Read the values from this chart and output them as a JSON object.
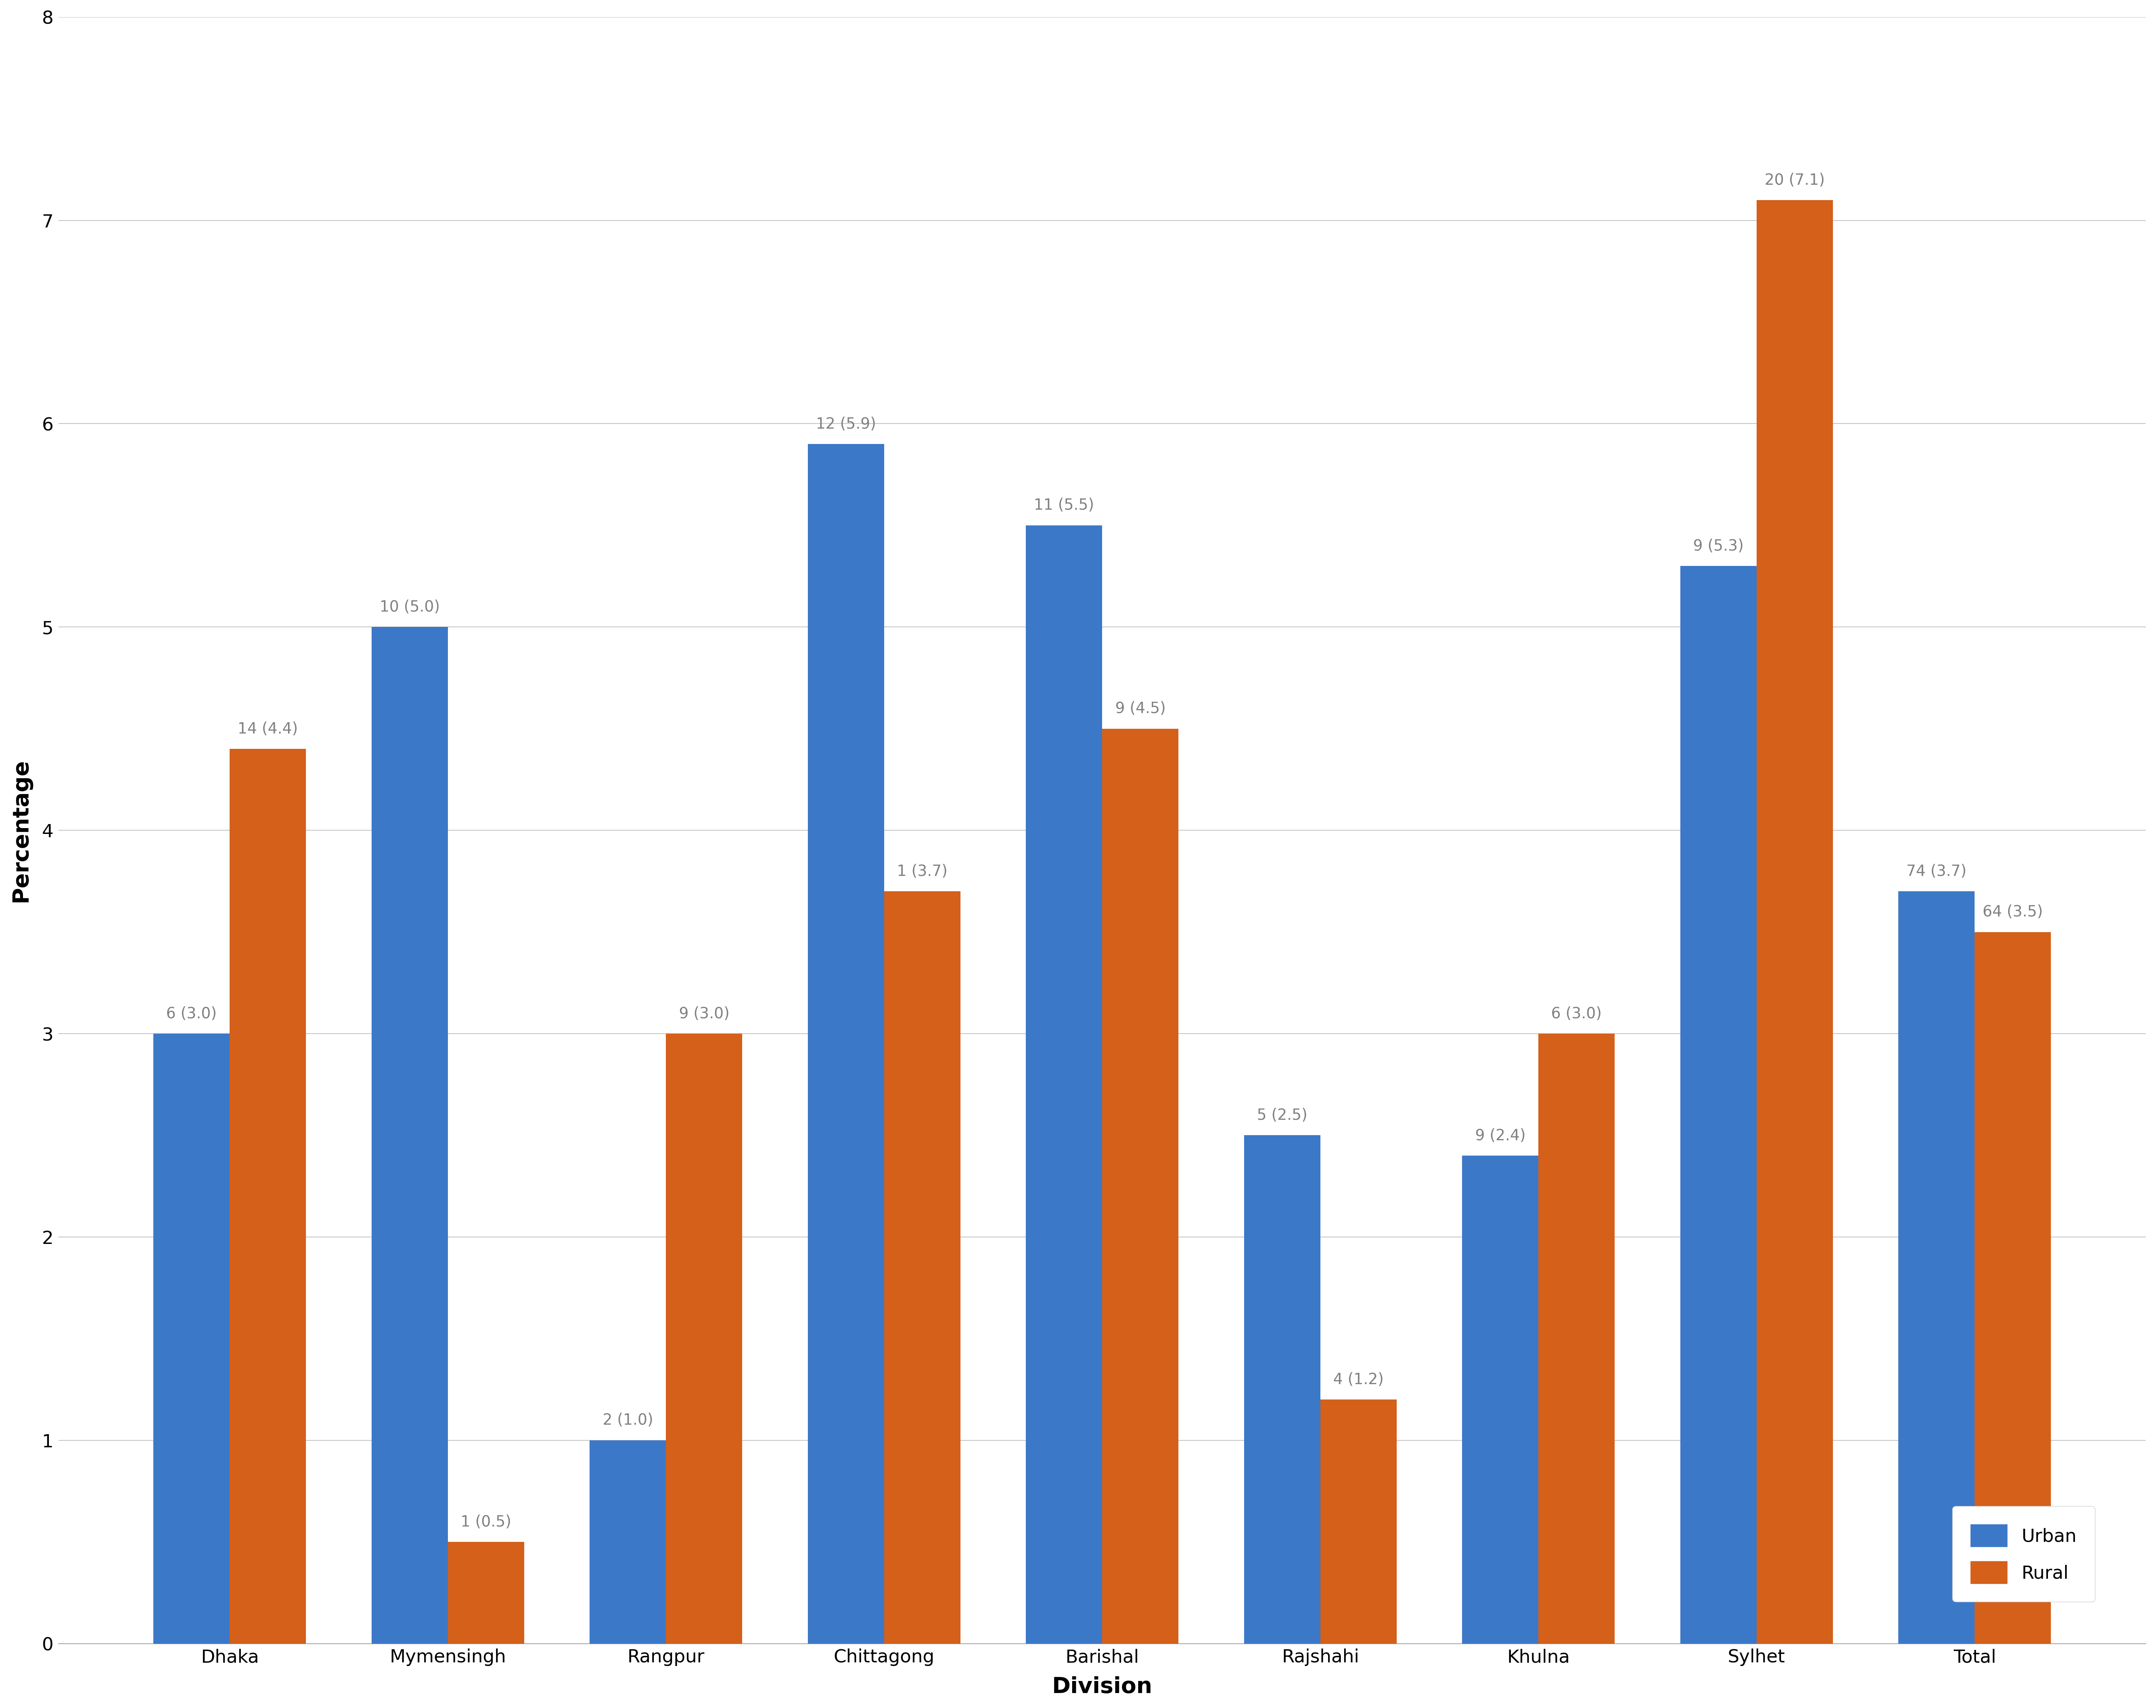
{
  "categories": [
    "Dhaka",
    "Mymensingh",
    "Rangpur",
    "Chittagong",
    "Barishal",
    "Rajshahi",
    "Khulna",
    "Sylhet",
    "Total"
  ],
  "urban_values": [
    3.0,
    5.0,
    1.0,
    5.9,
    5.5,
    2.5,
    2.4,
    5.3,
    3.7
  ],
  "rural_values": [
    4.4,
    0.5,
    3.0,
    3.7,
    4.5,
    1.2,
    3.0,
    7.1,
    3.5
  ],
  "urban_labels": [
    "6 (3.0)",
    "10 (5.0)",
    "2 (1.0)",
    "12 (5.9)",
    "11 (5.5)",
    "5 (2.5)",
    "9 (2.4)",
    "9 (5.3)",
    "74 (3.7)"
  ],
  "rural_labels": [
    "14 (4.4)",
    "1 (0.5)",
    "9 (3.0)",
    "1 (3.7)",
    "9 (4.5)",
    "4 (1.2)",
    "6 (3.0)",
    "20 (7.1)",
    "64 (3.5)"
  ],
  "urban_color": "#3C78C8",
  "rural_color": "#D4601A",
  "ylabel": "Percentage",
  "xlabel": "Division",
  "ylim": [
    0,
    8
  ],
  "yticks": [
    0,
    1,
    2,
    3,
    4,
    5,
    6,
    7,
    8
  ],
  "legend_labels": [
    "Urban",
    "Rural"
  ],
  "bar_width": 0.35,
  "tick_fontsize": 36,
  "axis_label_fontsize": 44,
  "legend_fontsize": 36,
  "annotation_fontsize": 30,
  "background_color": "#FFFFFF",
  "annotation_color": "#808080"
}
